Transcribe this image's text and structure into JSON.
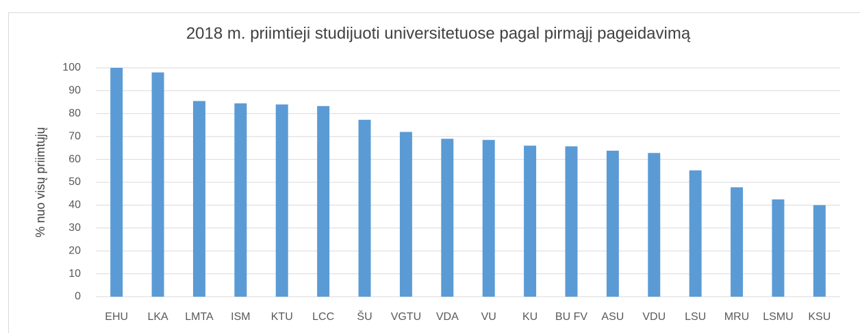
{
  "chart_data": {
    "type": "bar",
    "title": "2018 m. priimtieji studijuoti universitetuose pagal pirmąjį pageidavimą",
    "y_label": "% nuo visų priimtųjų",
    "categories": [
      "EHU",
      "LKA",
      "LMTA",
      "ISM",
      "KTU",
      "LCC",
      "ŠU",
      "VGTU",
      "VDA",
      "VU",
      "KU",
      "BU FV",
      "ASU",
      "VDU",
      "LSU",
      "MRU",
      "LSMU",
      "KSU"
    ],
    "values": [
      100,
      98,
      85.5,
      84.5,
      84,
      83.3,
      77.3,
      72,
      69,
      68.5,
      66,
      65.7,
      63.8,
      62.8,
      55.2,
      47.8,
      42.5,
      40
    ],
    "color": "#5b9bd5",
    "ylim": [
      0,
      100
    ],
    "yticks": [
      0,
      10,
      20,
      30,
      40,
      50,
      60,
      70,
      80,
      90,
      100
    ],
    "grid": true
  }
}
